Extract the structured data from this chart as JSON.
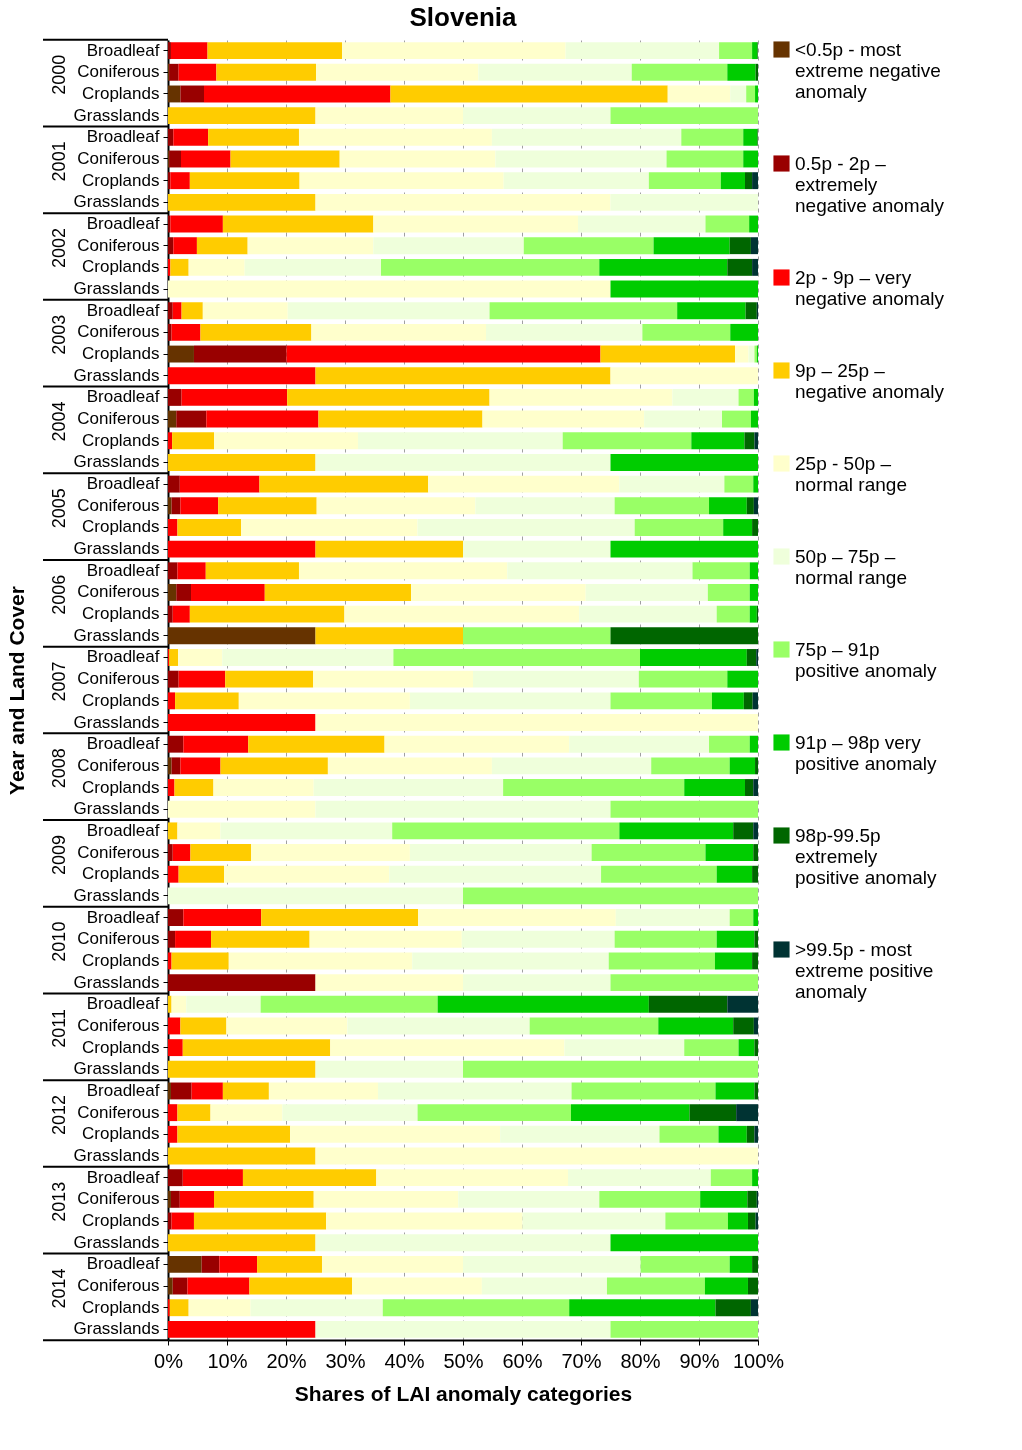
{
  "chart_data": {
    "type": "bar",
    "orientation": "horizontal",
    "stacked": true,
    "title": "Slovenia",
    "xlabel": "Shares of LAI anomaly categories",
    "ylabel": "Year and Land Cover",
    "categories": [
      "Broadleaf",
      "Coniferous",
      "Croplands",
      "Grasslands",
      "Broadleaf",
      "Coniferous",
      "Croplands",
      "Grasslands",
      "Broadleaf",
      "Coniferous",
      "Croplands",
      "Grasslands",
      "Broadleaf",
      "Coniferous",
      "Croplands",
      "Grasslands",
      "Broadleaf",
      "Coniferous",
      "Croplands",
      "Grasslands",
      "Broadleaf",
      "Coniferous",
      "Croplands",
      "Grasslands",
      "Broadleaf",
      "Coniferous",
      "Croplands",
      "Grasslands",
      "Broadleaf",
      "Coniferous",
      "Croplands",
      "Grasslands",
      "Broadleaf",
      "Coniferous",
      "Croplands",
      "Grasslands",
      "Broadleaf",
      "Coniferous",
      "Croplands",
      "Grasslands",
      "Broadleaf",
      "Coniferous",
      "Croplands",
      "Grasslands",
      "Broadleaf",
      "Coniferous",
      "Croplands",
      "Grasslands",
      "Broadleaf",
      "Coniferous",
      "Croplands",
      "Grasslands",
      "Broadleaf",
      "Coniferous",
      "Croplands",
      "Grasslands",
      "Broadleaf",
      "Coniferous",
      "Croplands",
      "Grasslands"
    ],
    "annotations": [
      "2000",
      "2001",
      "2002",
      "2003",
      "2004",
      "2005",
      "2006",
      "2007",
      "2008",
      "2009",
      "2010",
      "2011",
      "2012",
      "2013",
      "2014"
    ],
    "xlim": [
      0,
      100
    ],
    "xticks": [
      {
        "value": 0,
        "label": "0%"
      },
      {
        "value": 10,
        "label": "10%"
      },
      {
        "value": 20,
        "label": "20%"
      },
      {
        "value": 30,
        "label": "30%"
      },
      {
        "value": 40,
        "label": "40%"
      },
      {
        "value": 50,
        "label": "50%"
      },
      {
        "value": 60,
        "label": "60%"
      },
      {
        "value": 70,
        "label": "70%"
      },
      {
        "value": 80,
        "label": "80%"
      },
      {
        "value": 90,
        "label": "90%"
      },
      {
        "value": 100,
        "label": "100%"
      }
    ],
    "grid": "x",
    "legend": "right",
    "series": [
      {
        "name": "<0.5p - most extreme negative anomaly",
        "color": "#663300",
        "values": [
          0,
          0.2,
          2.1,
          0,
          0,
          0.2,
          0,
          0,
          0,
          0,
          0,
          0,
          0,
          0,
          4.4,
          0,
          0,
          1.4,
          0,
          0,
          0,
          0.6,
          0,
          0,
          0,
          1.4,
          0,
          25,
          0,
          0,
          0,
          0,
          0,
          0.6,
          0,
          0,
          0,
          0,
          0,
          0,
          0,
          0,
          0,
          0,
          0,
          0,
          0,
          0,
          0.5,
          0,
          0,
          0,
          0,
          0.5,
          0,
          0,
          5.7,
          0.8,
          0,
          0
        ]
      },
      {
        "name": "0.5p - 2p – extremely negative anomaly",
        "color": "#990000",
        "values": [
          0.5,
          1.6,
          4.0,
          0,
          0.9,
          2.0,
          0.4,
          0,
          0.4,
          0.9,
          0,
          0,
          0.8,
          0.6,
          15.7,
          0,
          2.3,
          5.1,
          0,
          0,
          2.0,
          1.5,
          0,
          0,
          1.6,
          2.5,
          0.8,
          0,
          0,
          1.8,
          0,
          0,
          2.6,
          1.5,
          0,
          0,
          0,
          0.8,
          0,
          0,
          2.6,
          1.2,
          0,
          25,
          0,
          0,
          0,
          0,
          3.5,
          0,
          0,
          0,
          2.5,
          1.5,
          0.6,
          0,
          3.0,
          2.5,
          0,
          0
        ]
      },
      {
        "name": "2p - 9p – very negative anomaly",
        "color": "#ff0000",
        "values": [
          6.2,
          6.4,
          31.6,
          0,
          5.9,
          8.4,
          3.3,
          0,
          8.9,
          4.0,
          0.4,
          0,
          1.5,
          4.9,
          53.2,
          25,
          17.9,
          19.0,
          0.7,
          0,
          13.5,
          6.4,
          1.6,
          25,
          4.8,
          12.5,
          2.9,
          0,
          0.2,
          7.9,
          1.2,
          25,
          11.0,
          6.8,
          1.1,
          0,
          0,
          3.0,
          1.8,
          0,
          13.2,
          6.1,
          0.6,
          0,
          0,
          2.1,
          2.5,
          0,
          5.3,
          1.6,
          1.6,
          0,
          10.2,
          5.8,
          3.8,
          0,
          6.4,
          10.5,
          0.3,
          25
        ]
      },
      {
        "name": "9p – 25p – negative anomaly",
        "color": "#ffcc00",
        "values": [
          22.8,
          16.9,
          47.0,
          25,
          15.4,
          18.5,
          18.6,
          25,
          25.5,
          8.6,
          3.1,
          0,
          3.6,
          18.8,
          22.8,
          50,
          34.3,
          27.8,
          7.1,
          25,
          28.6,
          16.7,
          10.8,
          25,
          15.8,
          24.8,
          26.2,
          25,
          1.5,
          14.9,
          10.8,
          0,
          23.1,
          18.2,
          6.6,
          0,
          1.6,
          10.3,
          7.7,
          0,
          26.6,
          16.7,
          9.7,
          0,
          0.6,
          7.8,
          25.0,
          25,
          7.8,
          5.6,
          19.1,
          25,
          22.6,
          16.9,
          22.4,
          25,
          11.0,
          17.4,
          3.2,
          0
        ]
      },
      {
        "name": "25p - 50p – normal range",
        "color": "#ffffcc",
        "values": [
          37.9,
          27.5,
          10.6,
          25,
          32.7,
          26.4,
          34.6,
          50,
          34.7,
          21.3,
          9.5,
          75,
          14.4,
          29.6,
          2.3,
          25,
          31.0,
          27.4,
          24.4,
          0,
          32.4,
          26.9,
          29.9,
          0,
          35.3,
          29.6,
          39.8,
          0,
          7.5,
          27.1,
          29.0,
          75,
          31.3,
          27.8,
          17.0,
          25,
          7.3,
          26.9,
          28.0,
          0,
          33.5,
          25.8,
          31.1,
          25,
          2.5,
          20.5,
          39.7,
          0,
          18.5,
          12.2,
          35.6,
          75,
          32.5,
          24.5,
          33.3,
          0,
          23.9,
          22.0,
          10.5,
          0
        ]
      },
      {
        "name": "50p – 75p – normal range",
        "color": "#efffdb",
        "values": [
          26.0,
          26.0,
          2.7,
          25,
          32.1,
          29.0,
          24.6,
          25,
          21.6,
          25.5,
          23.1,
          0,
          34.2,
          26.5,
          1.0,
          0,
          11.2,
          13.2,
          34.7,
          50,
          17.8,
          23.6,
          36.8,
          25,
          31.4,
          20.7,
          23.3,
          0,
          29.0,
          28.1,
          34.0,
          0,
          23.7,
          27.0,
          32.1,
          50,
          29.1,
          30.8,
          35.9,
          50,
          19.3,
          25.9,
          33.3,
          25,
          12.6,
          30.9,
          20.3,
          25,
          32.8,
          22.9,
          27.0,
          0,
          24.2,
          23.9,
          24.2,
          50,
          30.1,
          21.2,
          22.4,
          50
        ]
      },
      {
        "name": "75p – 91p positive anomaly",
        "color": "#99ff66",
        "values": [
          5.6,
          16.2,
          1.5,
          25,
          10.5,
          13.0,
          12.2,
          0,
          7.4,
          22.0,
          37.0,
          0,
          31.8,
          14.9,
          0.4,
          0,
          2.6,
          4.9,
          21.8,
          0,
          4.9,
          16.0,
          15.0,
          0,
          9.7,
          7.1,
          5.6,
          25,
          41.8,
          15.0,
          17.2,
          0,
          6.9,
          13.3,
          30.7,
          25,
          38.5,
          19.3,
          19.6,
          50,
          4.0,
          17.3,
          18.0,
          25,
          30.0,
          21.8,
          9.2,
          50,
          24.4,
          26.0,
          10.0,
          0,
          7.0,
          17.1,
          10.6,
          0,
          15.1,
          16.6,
          31.6,
          25
        ]
      },
      {
        "name": "91p – 98p very positive anomaly",
        "color": "#00cc00",
        "values": [
          0.9,
          4.8,
          0.5,
          0,
          2.4,
          2.5,
          4.1,
          0,
          1.5,
          12.9,
          21.7,
          25,
          11.6,
          4.7,
          0.2,
          0,
          0.7,
          1.2,
          9.0,
          25,
          0.8,
          6.4,
          4.9,
          25,
          1.4,
          1.4,
          1.2,
          0,
          18.1,
          5.2,
          5.4,
          0,
          1.4,
          4.3,
          10.3,
          0,
          19.3,
          8.1,
          6.0,
          0,
          0.8,
          6.4,
          6.3,
          0,
          35.8,
          12.7,
          2.7,
          0,
          6.6,
          20.1,
          4.8,
          0,
          1.0,
          8.0,
          3.4,
          25,
          3.8,
          7.3,
          24.8,
          0
        ]
      },
      {
        "name": "98p-99.5p extremely positive anomaly",
        "color": "#006600",
        "values": [
          0.1,
          0.4,
          0,
          0,
          0.1,
          0,
          1.2,
          0,
          0,
          3.6,
          4.2,
          0,
          1.9,
          0,
          0,
          0,
          0,
          0,
          1.7,
          0,
          0,
          1.2,
          1.0,
          0,
          0,
          0,
          0.2,
          25,
          1.6,
          0,
          1.5,
          0,
          0,
          0.5,
          1.4,
          0,
          3.4,
          0.8,
          1.0,
          0,
          0,
          0.6,
          1.0,
          0,
          13.3,
          3.5,
          0.6,
          0,
          0.6,
          7.9,
          1.3,
          0,
          0,
          1.6,
          1.3,
          0,
          1.0,
          1.7,
          6.0,
          0
        ]
      },
      {
        "name": ">99.5p - most extreme positive anomaly",
        "color": "#003333",
        "values": [
          0,
          0,
          0,
          0,
          0,
          0,
          1.0,
          0,
          0,
          1.2,
          1.0,
          0,
          0.2,
          0,
          0,
          0,
          0,
          0,
          0.6,
          0,
          0,
          0.7,
          0,
          0,
          0,
          0,
          0,
          0,
          0.3,
          0,
          0.9,
          0,
          0,
          0,
          0.8,
          0,
          0.8,
          0,
          0,
          0,
          0,
          0,
          0,
          0,
          5.2,
          0.7,
          0,
          0,
          0,
          3.7,
          0.6,
          0,
          0,
          0.2,
          0.4,
          0,
          0,
          0,
          1.2,
          0
        ]
      }
    ]
  }
}
